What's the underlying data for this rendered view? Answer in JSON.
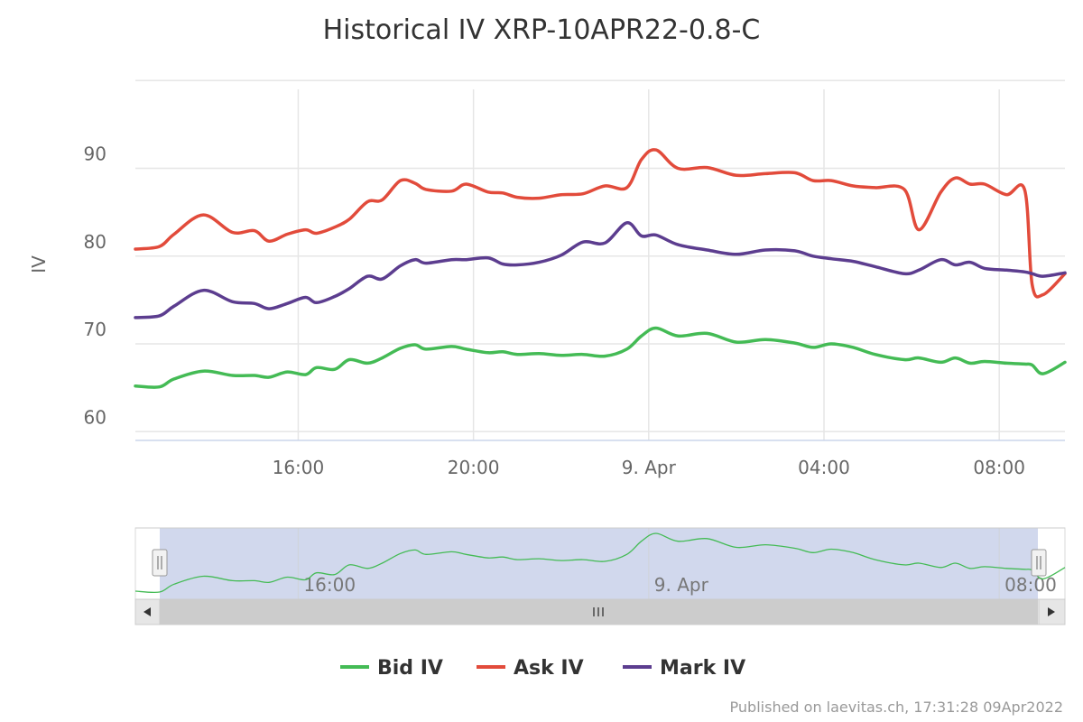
{
  "chart_data": {
    "type": "line",
    "title": "Historical IV XRP-10APR22-0.8-C",
    "xlabel": "",
    "ylabel": "IV",
    "x_tick_labels": [
      "16:00",
      "20:00",
      "9. Apr",
      "04:00",
      "08:00"
    ],
    "y_tick_labels": [
      "60",
      "70",
      "80",
      "90"
    ],
    "ylim": [
      59,
      99
    ],
    "xlim": [
      "2022-04-08T12:17",
      "2022-04-09T09:30"
    ],
    "grid": true,
    "legend": "bottom-center",
    "x": [
      "2022-04-08T12:17",
      "2022-04-08T12:50",
      "2022-04-08T13:10",
      "2022-04-08T13:50",
      "2022-04-08T14:30",
      "2022-04-08T15:00",
      "2022-04-08T15:20",
      "2022-04-08T15:45",
      "2022-04-08T16:10",
      "2022-04-08T16:25",
      "2022-04-08T16:50",
      "2022-04-08T17:10",
      "2022-04-08T17:35",
      "2022-04-08T17:55",
      "2022-04-08T18:20",
      "2022-04-08T18:40",
      "2022-04-08T18:55",
      "2022-04-08T19:30",
      "2022-04-08T19:50",
      "2022-04-08T20:20",
      "2022-04-08T20:40",
      "2022-04-08T21:00",
      "2022-04-08T21:30",
      "2022-04-08T22:00",
      "2022-04-08T22:30",
      "2022-04-08T23:00",
      "2022-04-08T23:30",
      "2022-04-08T23:50",
      "2022-04-09T00:10",
      "2022-04-09T00:40",
      "2022-04-09T01:20",
      "2022-04-09T02:00",
      "2022-04-09T02:40",
      "2022-04-09T03:20",
      "2022-04-09T03:45",
      "2022-04-09T04:10",
      "2022-04-09T04:40",
      "2022-04-09T05:10",
      "2022-04-09T05:50",
      "2022-04-09T06:10",
      "2022-04-09T06:40",
      "2022-04-09T07:00",
      "2022-04-09T07:20",
      "2022-04-09T07:40",
      "2022-04-09T08:10",
      "2022-04-09T08:35",
      "2022-04-09T08:45",
      "2022-04-09T09:00",
      "2022-04-09T09:30"
    ],
    "series": [
      {
        "name": "Bid IV",
        "color": "#44bb55",
        "values": [
          65.2,
          65.1,
          66.0,
          66.9,
          66.4,
          66.4,
          66.2,
          66.8,
          66.5,
          67.3,
          67.1,
          68.2,
          67.8,
          68.4,
          69.5,
          69.9,
          69.4,
          69.7,
          69.4,
          69.0,
          69.1,
          68.8,
          68.9,
          68.7,
          68.8,
          68.6,
          69.4,
          70.9,
          71.8,
          70.9,
          71.2,
          70.2,
          70.5,
          70.1,
          69.6,
          70.0,
          69.6,
          68.8,
          68.2,
          68.4,
          67.9,
          68.4,
          67.8,
          68.0,
          67.8,
          67.7,
          67.6,
          66.6,
          67.9
        ]
      },
      {
        "name": "Ask IV",
        "color": "#e24b3b",
        "values": [
          80.8,
          81.1,
          82.5,
          84.7,
          82.7,
          82.9,
          81.7,
          82.5,
          83.0,
          82.6,
          83.3,
          84.2,
          86.2,
          86.4,
          88.6,
          88.3,
          87.6,
          87.4,
          88.2,
          87.3,
          87.2,
          86.7,
          86.6,
          87.0,
          87.1,
          88.0,
          87.8,
          91.0,
          92.1,
          90.0,
          90.1,
          89.2,
          89.4,
          89.5,
          88.6,
          88.6,
          88.0,
          87.8,
          87.6,
          83.0,
          87.3,
          88.9,
          88.2,
          88.2,
          87.0,
          87.5,
          76.8,
          75.6,
          78.0
        ]
      },
      {
        "name": "Mark IV",
        "color": "#5c3d8f",
        "values": [
          73.0,
          73.2,
          74.3,
          76.1,
          74.8,
          74.6,
          74.0,
          74.6,
          75.3,
          74.7,
          75.4,
          76.3,
          77.7,
          77.4,
          78.9,
          79.6,
          79.2,
          79.6,
          79.6,
          79.8,
          79.1,
          79.0,
          79.3,
          80.1,
          81.6,
          81.5,
          83.8,
          82.3,
          82.4,
          81.3,
          80.7,
          80.2,
          80.7,
          80.6,
          80.0,
          79.7,
          79.4,
          78.8,
          78.0,
          78.4,
          79.6,
          79.0,
          79.3,
          78.6,
          78.4,
          78.2,
          78.0,
          77.7,
          78.1
        ]
      }
    ]
  },
  "navigator": {
    "tick_labels": [
      "16:00",
      "9. Apr",
      "08:00"
    ],
    "left_handle_icon": "grip-lines-icon",
    "right_handle_icon": "grip-lines-icon",
    "scroll_left_icon": "triangle-left-icon",
    "scroll_right_icon": "triangle-right-icon",
    "scroll_grip_icon": "grip-lines-icon"
  },
  "legend_items": [
    "Bid IV",
    "Ask IV",
    "Mark IV"
  ],
  "credit": "Published on laevitas.ch, 17:31:28 09Apr2022"
}
